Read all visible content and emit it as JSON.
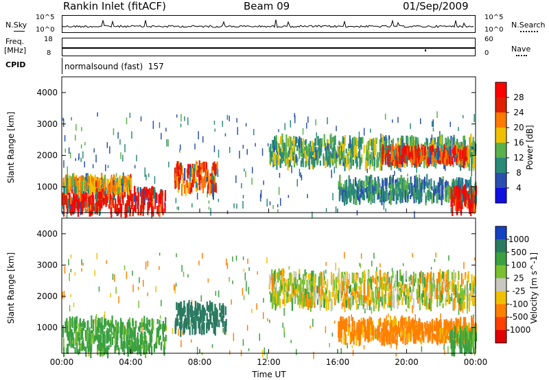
{
  "header": {
    "station": "Rankin Inlet (fitACF)",
    "beam": "Beam 09",
    "date": "01/Sep/2009"
  },
  "sky_panel": {
    "left_label": "N.Sky",
    "right_label": "N.Search",
    "left_top": "10^5",
    "left_bottom": "10^0",
    "right_top": "10^5",
    "right_bottom": "10^0"
  },
  "freq_panel": {
    "left_label_1": "Freq.",
    "left_label_2": "[MHz]",
    "right_label": "Nave",
    "left_top": "18",
    "left_bottom": "8",
    "right_top": "60",
    "right_bottom": "0"
  },
  "cpid_panel": {
    "label": "CPID",
    "mode": "normalsound (fast)  157"
  },
  "chart_data": [
    {
      "type": "heatmap",
      "title": "Power",
      "ylabel": "Slant Range [km]",
      "xlabel": "",
      "ylim": [
        180,
        4500
      ],
      "yticks": [
        "1000",
        "2000",
        "3000",
        "4000"
      ],
      "colorbar_label": "Power [dB]",
      "colorbar_ticks": [
        "4",
        "8",
        "12",
        "16",
        "20",
        "24",
        "28"
      ],
      "colorbar_colors": [
        "#1010e0",
        "#2a4fb0",
        "#2a8a78",
        "#5ab04a",
        "#f0c000",
        "#ff7a00",
        "#e02000",
        "#ff0000"
      ],
      "bands": [
        {
          "t0": 0.0,
          "t1": 6.0,
          "r0": 200,
          "r1": 900,
          "level": 28
        },
        {
          "t0": 0.0,
          "t1": 4.0,
          "r0": 900,
          "r1": 1250,
          "level": 20
        },
        {
          "t0": 6.5,
          "t1": 9.0,
          "r0": 900,
          "r1": 1700,
          "level": 24
        },
        {
          "t0": 12.0,
          "t1": 24.0,
          "r0": 1700,
          "r1": 2500,
          "level": 14
        },
        {
          "t0": 18.5,
          "t1": 23.5,
          "r0": 1800,
          "r1": 2200,
          "level": 26
        },
        {
          "t0": 16.0,
          "t1": 24.0,
          "r0": 600,
          "r1": 1200,
          "level": 10
        },
        {
          "t0": 22.5,
          "t1": 24.0,
          "r0": 250,
          "r1": 900,
          "level": 28
        }
      ]
    },
    {
      "type": "heatmap",
      "title": "Velocity",
      "ylabel": "Slant Range [km]",
      "xlabel": "Time UT",
      "ylim": [
        180,
        4500
      ],
      "yticks": [
        "1000",
        "2000",
        "3000",
        "4000"
      ],
      "xticks": [
        "00:00",
        "04:00",
        "08:00",
        "12:00",
        "16:00",
        "20:00",
        "00:00"
      ],
      "colorbar_label": "Velocity [m s^-1]",
      "colorbar_ticks": [
        "1000",
        "500",
        "100",
        "25",
        "-25",
        "-100",
        "-500",
        "-1000"
      ],
      "colorbar_colors": [
        "#1540c0",
        "#2a7a60",
        "#3aa040",
        "#7ac030",
        "#c8c8c0",
        "#f0c000",
        "#ff8000",
        "#ff4000",
        "#e00000"
      ],
      "bands": [
        {
          "t0": 0.0,
          "t1": 6.0,
          "r0": 200,
          "r1": 1200,
          "level": 100
        },
        {
          "t0": 6.5,
          "t1": 9.5,
          "r0": 900,
          "r1": 1700,
          "level": 500
        },
        {
          "t0": 12.0,
          "t1": 24.0,
          "r0": 1700,
          "r1": 2700,
          "level": 0
        },
        {
          "t0": 16.0,
          "t1": 24.0,
          "r0": 600,
          "r1": 1200,
          "level": -100
        },
        {
          "t0": 22.5,
          "t1": 24.0,
          "r0": 250,
          "r1": 900,
          "level": 100
        }
      ]
    }
  ]
}
